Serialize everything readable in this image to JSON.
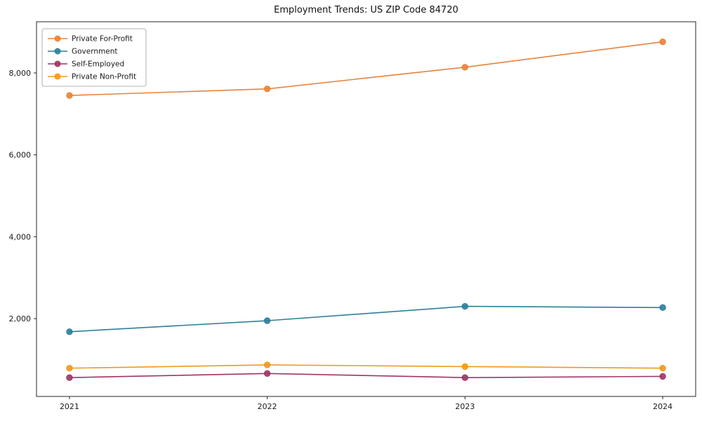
{
  "chart_data": {
    "type": "line",
    "title": "Employment Trends: US ZIP Code 84720",
    "xlabel": "",
    "ylabel": "",
    "x": [
      "2021",
      "2022",
      "2023",
      "2024"
    ],
    "series": [
      {
        "name": "Private For-Profit",
        "color": "#e8833a",
        "values": [
          7450,
          7610,
          8140,
          8760
        ]
      },
      {
        "name": "Government",
        "color": "#2e7f99",
        "values": [
          1680,
          1950,
          2300,
          2270
        ]
      },
      {
        "name": "Self-Employed",
        "color": "#a03468",
        "values": [
          560,
          660,
          560,
          590
        ]
      },
      {
        "name": "Private Non-Profit",
        "color": "#f09a1c",
        "values": [
          790,
          870,
          830,
          790
        ]
      }
    ],
    "yticks": [
      2000,
      4000,
      6000,
      8000
    ],
    "ylim": [
      100,
      9250
    ],
    "grid": false,
    "legend_position": "upper left",
    "axis_color": "#262626",
    "tick_label_color": "#1a1a1a",
    "legend_border_color": "#b0b0b0",
    "background_color": "#ffffff"
  }
}
